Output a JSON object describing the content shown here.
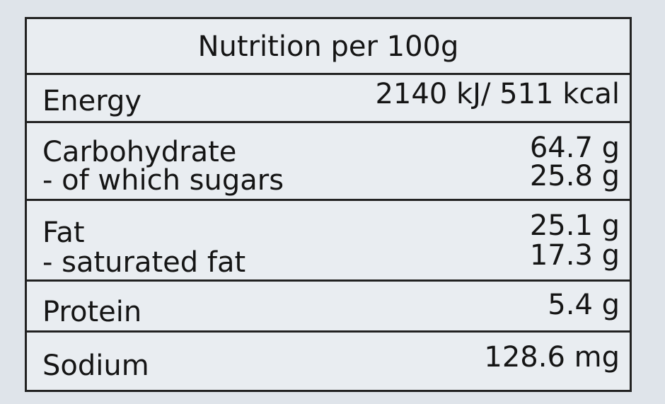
{
  "title": "Nutrition per 100g",
  "rows": [
    {
      "label": "Energy",
      "value": "2140 kJ/ 511 kcal"
    },
    {
      "label": "Carbohydrate",
      "value": "64.7 g",
      "sub_label": "- of which sugars",
      "sub_value": "25.8 g"
    },
    {
      "label": "Fat",
      "value": "25.1 g",
      "sub_label": "- saturated fat",
      "sub_value": "17.3 g"
    },
    {
      "label": "Protein",
      "value": "5.4 g"
    },
    {
      "label": "Sodium",
      "value": "128.6 mg"
    }
  ]
}
